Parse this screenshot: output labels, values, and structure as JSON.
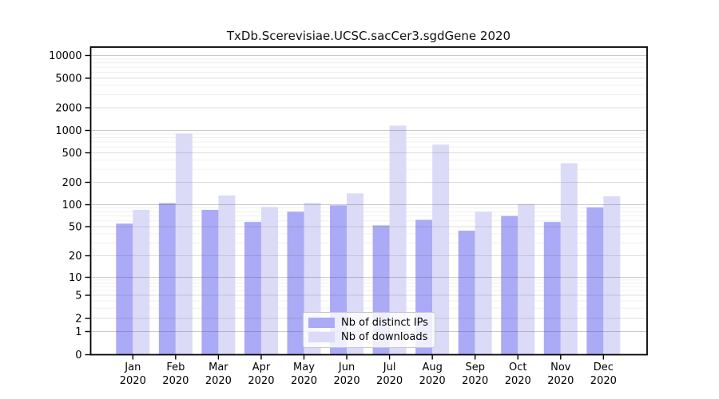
{
  "chart_data": {
    "type": "bar",
    "title": "TxDb.Scerevisiae.UCSC.sacCer3.sgdGene 2020",
    "year": "2020",
    "categories": [
      "Jan",
      "Feb",
      "Mar",
      "Apr",
      "May",
      "Jun",
      "Jul",
      "Aug",
      "Sep",
      "Oct",
      "Nov",
      "Dec"
    ],
    "series": [
      {
        "name": "Nb of distinct IPs",
        "color": "#aaaaf6",
        "values": [
          55,
          105,
          85,
          58,
          80,
          98,
          52,
          62,
          44,
          70,
          58,
          92
        ]
      },
      {
        "name": "Nb of downloads",
        "color": "#dbdbf8",
        "values": [
          85,
          910,
          133,
          93,
          106,
          142,
          1160,
          645,
          80,
          102,
          362,
          130
        ]
      }
    ],
    "xlabel": "",
    "ylabel": "",
    "yscale": "symlog",
    "yticks": [
      0,
      1,
      2,
      5,
      10,
      20,
      50,
      100,
      200,
      500,
      1000,
      2000,
      5000,
      10000
    ],
    "ylim": [
      0,
      13000
    ],
    "grid": true,
    "legend_position": "bottom-center-inside"
  }
}
